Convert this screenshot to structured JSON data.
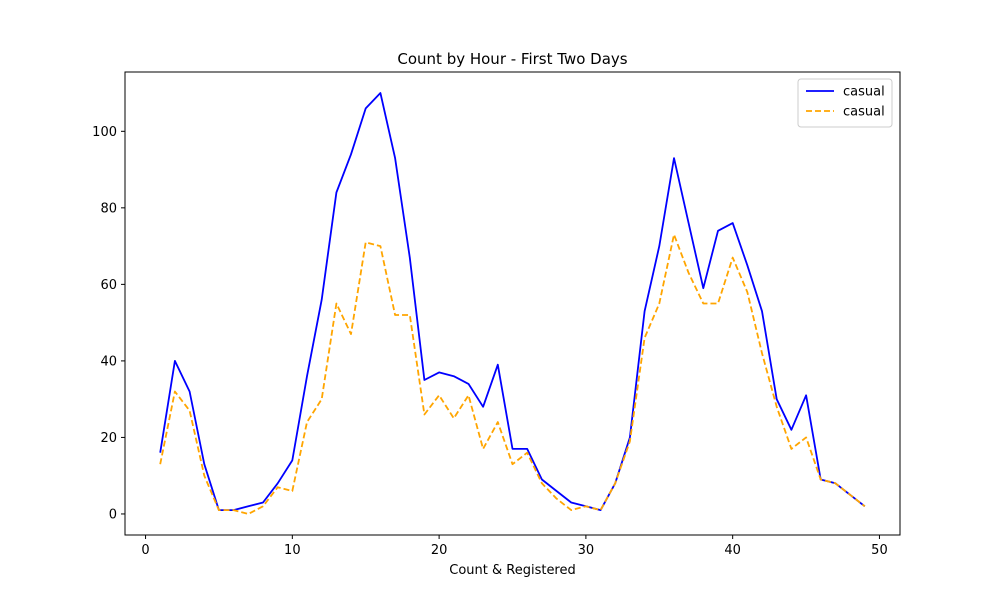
{
  "chart_data": {
    "type": "line",
    "title": "Count by Hour - First Two Days",
    "xlabel": "Count & Registered",
    "ylabel": "",
    "xlim": [
      -1.4,
      51.4
    ],
    "ylim": [
      -5.5,
      115.5
    ],
    "xticks": [
      0,
      10,
      20,
      30,
      40,
      50
    ],
    "yticks": [
      0,
      20,
      40,
      60,
      80,
      100
    ],
    "grid": false,
    "legend_position": "top-right",
    "x": [
      1,
      2,
      3,
      4,
      5,
      6,
      7,
      8,
      9,
      10,
      11,
      12,
      13,
      14,
      15,
      16,
      17,
      18,
      19,
      20,
      21,
      22,
      23,
      24,
      25,
      26,
      27,
      28,
      29,
      30,
      31,
      32,
      33,
      34,
      35,
      36,
      37,
      38,
      39,
      40,
      41,
      42,
      43,
      44,
      45,
      46,
      47,
      48,
      49
    ],
    "series": [
      {
        "name": "casual",
        "color": "#0000ff",
        "style": "solid",
        "values": [
          16,
          40,
          32,
          13,
          1,
          1,
          2,
          3,
          8,
          14,
          36,
          56,
          84,
          94,
          106,
          110,
          93,
          67,
          35,
          37,
          36,
          34,
          28,
          39,
          17,
          17,
          9,
          6,
          3,
          2,
          1,
          8,
          20,
          53,
          70,
          93,
          76,
          59,
          74,
          76,
          65,
          53,
          30,
          22,
          31,
          9,
          8,
          5,
          2
        ]
      },
      {
        "name": "casual",
        "color": "#ffa500",
        "style": "dashed",
        "values": [
          13,
          32,
          27,
          10,
          1,
          1,
          0,
          2,
          7,
          6,
          24,
          30,
          55,
          47,
          71,
          70,
          52,
          52,
          26,
          31,
          25,
          31,
          17,
          24,
          13,
          16,
          8,
          4,
          1,
          2,
          1,
          8,
          19,
          46,
          55,
          73,
          63,
          55,
          55,
          67,
          58,
          42,
          28,
          17,
          20,
          9,
          8,
          5,
          2
        ]
      }
    ]
  }
}
